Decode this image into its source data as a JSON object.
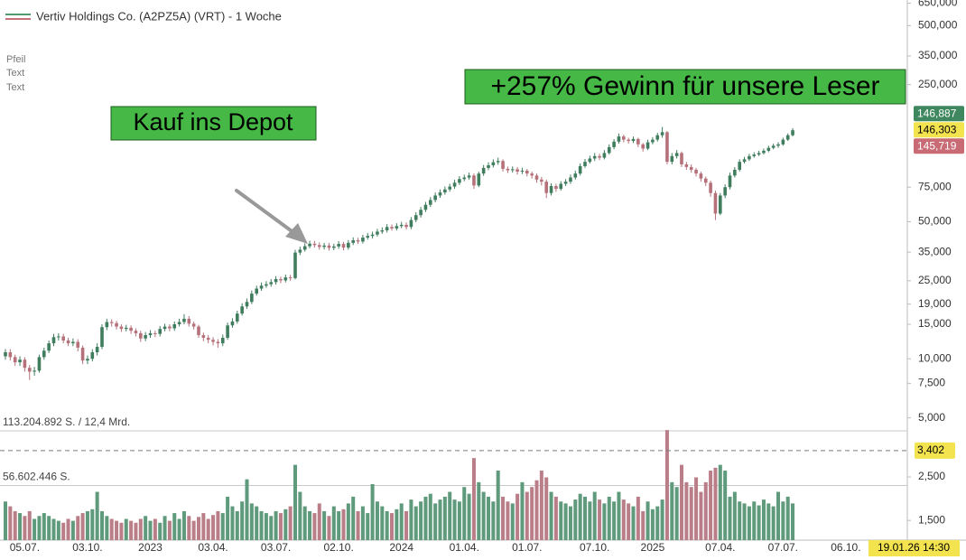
{
  "sidebar_labels": [
    "Pfeil",
    "Text",
    "Text"
  ],
  "chart_data": {
    "type": "candlestick",
    "title": "Vertiv Holdings Co. (A2PZ5A) (VRT) - 1 Woche",
    "categories": [
      null,
      null,
      null,
      null,
      "05.07.",
      null,
      null,
      null,
      null,
      null,
      null,
      null,
      null,
      null,
      null,
      null,
      null,
      "03.10.",
      null,
      null,
      null,
      null,
      null,
      null,
      null,
      null,
      null,
      null,
      null,
      null,
      "2023",
      null,
      null,
      null,
      null,
      null,
      null,
      null,
      null,
      null,
      null,
      null,
      null,
      "03.04.",
      null,
      null,
      null,
      null,
      null,
      null,
      null,
      null,
      null,
      null,
      null,
      null,
      "03.07.",
      null,
      null,
      null,
      null,
      null,
      null,
      null,
      null,
      null,
      null,
      null,
      null,
      "02.10.",
      null,
      null,
      null,
      null,
      null,
      null,
      null,
      null,
      null,
      null,
      null,
      null,
      "2024",
      null,
      null,
      null,
      null,
      null,
      null,
      null,
      null,
      null,
      null,
      null,
      null,
      "01.04.",
      null,
      null,
      null,
      null,
      null,
      null,
      null,
      null,
      null,
      null,
      null,
      null,
      "01.07.",
      null,
      null,
      null,
      null,
      null,
      null,
      null,
      null,
      null,
      null,
      null,
      null,
      null,
      "07.10.",
      null,
      null,
      null,
      null,
      null,
      null,
      null,
      null,
      null,
      null,
      null,
      "2025",
      null,
      null,
      null,
      null,
      null,
      null,
      null,
      null,
      null,
      null,
      null,
      null,
      null,
      "07.04.",
      null,
      null,
      null,
      null,
      null,
      null,
      null,
      null,
      null,
      null,
      null,
      null,
      "07.07.",
      null,
      null,
      null,
      null,
      null,
      null,
      null,
      null,
      null,
      null,
      null,
      null,
      "06.10."
    ],
    "open": [
      10.3,
      10.8,
      10.2,
      9.6,
      9.9,
      9.0,
      8.6,
      8.7,
      10.2,
      11.0,
      12.0,
      12.9,
      13.0,
      12.4,
      12.0,
      12.2,
      11.4,
      9.8,
      10.0,
      10.8,
      11.5,
      14.5,
      15.4,
      15.2,
      14.6,
      14.2,
      14.4,
      13.9,
      13.5,
      12.7,
      13.2,
      13.5,
      13.4,
      14.2,
      14.6,
      14.3,
      15.0,
      15.4,
      16.0,
      15.1,
      14.6,
      13.2,
      12.8,
      12.5,
      12.2,
      12.0,
      12.8,
      14.8,
      15.5,
      17.0,
      18.5,
      19.5,
      21.5,
      22.8,
      23.6,
      24.0,
      24.6,
      25.5,
      25.1,
      26.0,
      25.8,
      34.8,
      36.0,
      37.5,
      38.6,
      38.0,
      37.2,
      37.8,
      36.8,
      37.4,
      38.5,
      36.9,
      39.0,
      40.2,
      39.6,
      41.5,
      42.3,
      43.0,
      44.5,
      45.2,
      47.0,
      46.2,
      47.5,
      48.2,
      47.0,
      51.0,
      54.0,
      57.5,
      61.0,
      64.5,
      68.0,
      70.5,
      73.0,
      75.5,
      79.0,
      82.5,
      84.0,
      86.0,
      76.5,
      88.0,
      94.0,
      97.0,
      100.5,
      102.0,
      93.0,
      91.5,
      92.5,
      90.0,
      91.0,
      88.0,
      86.0,
      82.0,
      80.0,
      70.0,
      76.0,
      73.5,
      78.0,
      80.0,
      84.0,
      88.0,
      96.0,
      101.0,
      105.0,
      108.0,
      106.0,
      112.0,
      120.0,
      128.0,
      136.0,
      131.0,
      129.0,
      132.0,
      124.0,
      118.0,
      127.0,
      131.0,
      138.0,
      143.0,
      101.0,
      108.0,
      112.0,
      98.0,
      95.0,
      92.0,
      88.0,
      83.0,
      79.0,
      70.0,
      55.0,
      68.0,
      75.0,
      86.0,
      92.0,
      101.0,
      104.0,
      108.0,
      110.0,
      112.0,
      115.0,
      119.0,
      122.0,
      124.0,
      131.0,
      138.0,
      null,
      null,
      null,
      null,
      null,
      null,
      null,
      null,
      null,
      null,
      null
    ],
    "high": [
      11.2,
      11.2,
      10.5,
      10.3,
      10.2,
      9.3,
      9.1,
      10.5,
      11.4,
      12.4,
      13.4,
      13.5,
      13.4,
      12.8,
      12.7,
      12.6,
      11.7,
      10.4,
      11.2,
      12.0,
      15.0,
      16.0,
      15.9,
      15.6,
      15.0,
      14.9,
      14.8,
      14.3,
      13.9,
      13.7,
      14.0,
      13.9,
      14.7,
      15.1,
      15.0,
      15.5,
      16.0,
      16.9,
      16.5,
      15.5,
      14.9,
      13.6,
      13.2,
      12.9,
      12.6,
      13.3,
      15.3,
      16.1,
      17.6,
      19.2,
      20.3,
      22.3,
      23.6,
      24.5,
      24.9,
      25.5,
      26.4,
      26.2,
      26.9,
      26.8,
      36.0,
      37.3,
      38.8,
      40.0,
      39.9,
      39.2,
      39.0,
      39.0,
      38.6,
      39.8,
      39.5,
      40.3,
      41.6,
      41.4,
      42.9,
      43.8,
      44.5,
      46.0,
      46.8,
      48.6,
      48.4,
      49.1,
      49.9,
      49.6,
      52.8,
      55.9,
      59.5,
      63.1,
      66.8,
      70.4,
      73.0,
      75.6,
      78.1,
      81.8,
      85.4,
      86.9,
      89.0,
      88.0,
      90.0,
      97.3,
      100.4,
      104.0,
      106.0,
      104.0,
      95.5,
      95.7,
      95.0,
      94.2,
      93.0,
      90.0,
      88.0,
      84.5,
      82.0,
      78.5,
      78.0,
      80.5,
      82.5,
      87.0,
      91.0,
      99.0,
      104.5,
      108.5,
      112.0,
      111.0,
      116.0,
      124.0,
      132.0,
      141.0,
      139.0,
      134.0,
      136.0,
      134.0,
      126.0,
      131.0,
      135.0,
      142.0,
      152.0,
      145.0,
      112.0,
      116.0,
      114.0,
      101.0,
      98.0,
      94.0,
      90.0,
      85.0,
      81.0,
      72.0,
      70.0,
      77.5,
      89.0,
      95.0,
      104.0,
      107.0,
      111.0,
      113.0,
      115.0,
      118.0,
      122.0,
      125.0,
      127.0,
      134.0,
      141.0,
      150.0,
      null,
      null,
      null,
      null,
      null,
      null,
      null,
      null,
      null,
      null,
      null
    ],
    "low": [
      9.9,
      9.8,
      9.2,
      9.2,
      8.6,
      7.8,
      8.2,
      8.5,
      9.9,
      10.7,
      11.6,
      12.4,
      12.0,
      11.6,
      11.6,
      10.9,
      9.4,
      9.4,
      9.7,
      10.4,
      11.2,
      14.0,
      14.6,
      14.1,
      13.7,
      13.8,
      13.4,
      13.0,
      12.2,
      12.3,
      12.8,
      12.9,
      13.0,
      13.8,
      13.8,
      13.9,
      14.6,
      15.0,
      14.6,
      14.1,
      12.8,
      12.3,
      12.0,
      11.7,
      11.4,
      11.6,
      12.5,
      14.4,
      15.1,
      16.6,
      18.0,
      19.0,
      21.0,
      22.2,
      23.0,
      23.3,
      23.9,
      24.3,
      24.5,
      25.0,
      25.4,
      33.8,
      35.2,
      36.6,
      36.9,
      36.0,
      36.1,
      35.6,
      35.8,
      36.4,
      35.7,
      36.0,
      38.0,
      38.5,
      38.7,
      40.5,
      41.0,
      42.0,
      43.4,
      44.0,
      45.0,
      45.1,
      46.3,
      45.6,
      45.8,
      49.7,
      52.5,
      56.0,
      59.4,
      62.8,
      66.2,
      68.7,
      71.1,
      73.5,
      76.9,
      80.4,
      81.8,
      73.5,
      75.0,
      85.7,
      91.5,
      94.5,
      97.5,
      90.0,
      88.5,
      89.0,
      87.0,
      87.5,
      85.0,
      83.0,
      79.0,
      76.5,
      66.0,
      68.0,
      71.0,
      72.0,
      76.0,
      78.0,
      82.0,
      86.0,
      94.0,
      99.0,
      102.0,
      103.0,
      104.0,
      110.0,
      117.0,
      125.0,
      127.0,
      125.0,
      126.0,
      120.0,
      114.0,
      116.0,
      124.0,
      128.0,
      134.0,
      98.0,
      98.0,
      105.0,
      95.0,
      92.0,
      89.0,
      85.0,
      80.0,
      76.0,
      67.0,
      51.0,
      54.0,
      66.0,
      73.0,
      84.0,
      90.0,
      99.0,
      102.0,
      106.0,
      108.0,
      110.0,
      113.0,
      117.0,
      119.0,
      122.0,
      129.0,
      136.0,
      null,
      null,
      null,
      null,
      null,
      null,
      null,
      null,
      null,
      null,
      null
    ],
    "close": [
      10.8,
      10.2,
      9.6,
      9.9,
      9.0,
      8.6,
      8.7,
      10.2,
      11.0,
      12.0,
      12.9,
      13.0,
      12.4,
      12.0,
      12.2,
      11.4,
      9.8,
      10.0,
      10.8,
      11.5,
      14.5,
      15.4,
      15.2,
      14.6,
      14.2,
      14.4,
      13.9,
      13.5,
      12.7,
      13.2,
      13.5,
      13.4,
      14.2,
      14.6,
      14.3,
      15.0,
      15.4,
      16.0,
      15.1,
      14.6,
      13.2,
      12.8,
      12.5,
      12.2,
      12.0,
      12.8,
      14.8,
      15.5,
      17.0,
      18.5,
      19.5,
      21.5,
      22.8,
      23.6,
      24.0,
      24.6,
      25.5,
      25.1,
      26.0,
      25.8,
      34.8,
      36.0,
      37.5,
      38.6,
      38.0,
      37.2,
      37.8,
      36.8,
      37.4,
      38.5,
      36.9,
      39.0,
      40.2,
      39.6,
      41.5,
      42.3,
      43.0,
      44.5,
      45.2,
      47.0,
      46.2,
      47.5,
      48.2,
      47.0,
      51.0,
      54.0,
      57.5,
      61.0,
      64.5,
      68.0,
      70.5,
      73.0,
      75.5,
      79.0,
      82.5,
      84.0,
      86.0,
      76.5,
      88.0,
      94.0,
      97.0,
      100.5,
      102.0,
      93.0,
      91.5,
      92.5,
      90.0,
      91.0,
      88.0,
      86.0,
      82.0,
      80.0,
      70.0,
      76.0,
      73.5,
      78.0,
      80.0,
      84.0,
      88.0,
      96.0,
      101.0,
      105.0,
      108.0,
      106.0,
      112.0,
      120.0,
      128.0,
      136.0,
      131.0,
      129.0,
      132.0,
      124.0,
      118.0,
      127.0,
      131.0,
      138.0,
      143.0,
      101.0,
      108.0,
      112.0,
      98.0,
      95.0,
      92.0,
      88.0,
      83.0,
      79.0,
      70.0,
      55.0,
      68.0,
      75.0,
      86.0,
      92.0,
      101.0,
      104.0,
      108.0,
      110.0,
      112.0,
      115.0,
      119.0,
      122.0,
      124.0,
      131.0,
      138.0,
      146.303,
      null,
      null,
      null,
      null,
      null,
      null,
      null,
      null,
      null,
      null,
      null
    ],
    "volume": [
      40,
      35,
      30,
      28,
      25,
      30,
      22,
      25,
      28,
      25,
      22,
      20,
      18,
      22,
      20,
      25,
      28,
      30,
      32,
      50,
      30,
      25,
      22,
      20,
      18,
      22,
      20,
      18,
      22,
      25,
      20,
      22,
      18,
      25,
      20,
      28,
      22,
      30,
      25,
      20,
      24,
      28,
      22,
      26,
      30,
      28,
      45,
      35,
      30,
      40,
      63,
      38,
      35,
      30,
      28,
      25,
      30,
      28,
      32,
      35,
      78,
      50,
      35,
      30,
      28,
      38,
      30,
      25,
      35,
      30,
      32,
      38,
      45,
      30,
      35,
      28,
      58,
      40,
      35,
      30,
      28,
      32,
      38,
      30,
      42,
      35,
      40,
      45,
      48,
      38,
      42,
      45,
      50,
      42,
      40,
      55,
      48,
      85,
      60,
      50,
      45,
      40,
      72,
      45,
      40,
      38,
      48,
      60,
      50,
      55,
      62,
      72,
      65,
      50,
      45,
      40,
      38,
      35,
      42,
      48,
      45,
      40,
      50,
      42,
      38,
      45,
      40,
      50,
      42,
      38,
      35,
      45,
      30,
      40,
      32,
      35,
      42,
      114,
      60,
      55,
      78,
      60,
      55,
      65,
      50,
      60,
      72,
      75,
      78,
      72,
      45,
      50,
      40,
      38,
      35,
      40,
      36,
      42,
      38,
      35,
      50,
      40,
      45,
      38,
      null,
      null,
      null,
      null,
      null,
      null,
      null,
      null,
      null,
      null,
      null
    ],
    "colors": {
      "up": "#3f7d5e",
      "down": "#b5707a"
    },
    "log_scale": true,
    "ylim": [
      1.19,
      675
    ],
    "yticks": [
      {
        "value": 650,
        "label": "650,000"
      },
      {
        "value": 500,
        "label": "500,000"
      },
      {
        "value": 350,
        "label": "350,000"
      },
      {
        "value": 250,
        "label": "250,000"
      },
      {
        "value": 75,
        "label": "75,000"
      },
      {
        "value": 50,
        "label": "50,000"
      },
      {
        "value": 35,
        "label": "35,000"
      },
      {
        "value": 25,
        "label": "25,000"
      },
      {
        "value": 19,
        "label": "19,000"
      },
      {
        "value": 15,
        "label": "15,000"
      },
      {
        "value": 10,
        "label": "10,000"
      },
      {
        "value": 7.5,
        "label": "7,500"
      },
      {
        "value": 5,
        "label": "5,000"
      },
      {
        "value": 2.5,
        "label": "2,500"
      },
      {
        "value": 1.5,
        "label": "1,500"
      }
    ],
    "vlim": [
      0,
      113.204892
    ],
    "volume_lines": [
      {
        "value": 113.204892,
        "label": "113.204.892 S. / 12,4 Mrd."
      },
      {
        "value": 56.602446,
        "label": "56.602.446 S."
      }
    ],
    "last_prices": [
      {
        "value": 146.887,
        "label": "146,887",
        "color": "#3e875f",
        "text_color": "#ffffff"
      },
      {
        "value": 146.303,
        "label": "146,303",
        "color": "#f3e34f",
        "text_color": "#000000"
      },
      {
        "value": 145.719,
        "label": "145,719",
        "color": "#c86b75",
        "text_color": "#ffffff"
      }
    ],
    "crosshair": {
      "value": 3.402,
      "label": "3,402",
      "color": "#f3e34f"
    },
    "annotations": [
      "Kauf ins Depot",
      "+257% Gewinn für unsere Leser"
    ],
    "timestamp": "19.01.26 14:30"
  }
}
